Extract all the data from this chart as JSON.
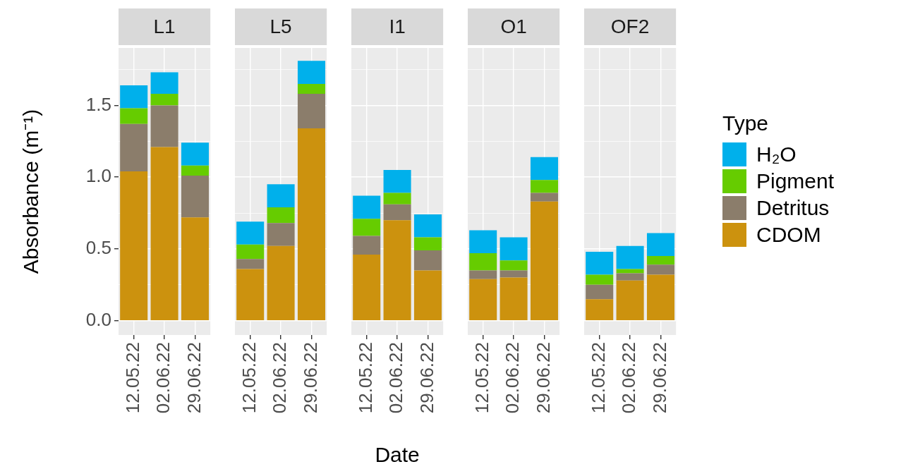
{
  "chart_data": [
    {
      "type": "bar",
      "stacked": true,
      "title": "L1",
      "ylabel": "Absorbance (m⁻¹)",
      "categories": [
        "12.05.22",
        "02.06.22",
        "29.06.22"
      ],
      "series": [
        {
          "color": "#cc920e",
          "values": [
            1.04,
            1.21,
            0.72
          ]
        },
        {
          "color": "#8b7d6b",
          "values": [
            0.33,
            0.29,
            0.29
          ]
        },
        {
          "color": "#66cc00",
          "values": [
            0.11,
            0.08,
            0.07
          ]
        },
        {
          "color": "#00b0eb",
          "values": [
            0.16,
            0.15,
            0.16
          ]
        }
      ],
      "ylim": [
        -0.1,
        1.9
      ],
      "yticks": [
        {
          "value": 0,
          "label": "0.0"
        },
        {
          "value": 0.25,
          "label": null
        },
        {
          "value": 0.5,
          "label": "0.5"
        },
        {
          "value": 0.75,
          "label": null
        },
        {
          "value": 1,
          "label": "1.0"
        },
        {
          "value": 1.25,
          "label": null
        },
        {
          "value": 1.5,
          "label": "1.5"
        },
        {
          "value": 1.75,
          "label": null
        }
      ],
      "grid": true
    },
    {
      "type": "bar",
      "stacked": true,
      "title": "L5",
      "categories": [
        "12.05.22",
        "02.06.22",
        "29.06.22"
      ],
      "series": [
        {
          "color": "#cc920e",
          "values": [
            0.36,
            0.52,
            1.34
          ]
        },
        {
          "color": "#8b7d6b",
          "values": [
            0.07,
            0.16,
            0.24
          ]
        },
        {
          "color": "#66cc00",
          "values": [
            0.1,
            0.11,
            0.07
          ]
        },
        {
          "color": "#00b0eb",
          "values": [
            0.16,
            0.16,
            0.16
          ]
        }
      ],
      "ylim": [
        -0.1,
        1.9
      ],
      "yticks": [
        0,
        {
          "value": 0.25,
          "label": null
        },
        0.5,
        {
          "value": 0.75,
          "label": null
        },
        1,
        {
          "value": 1.25,
          "label": null
        },
        1.5,
        {
          "value": 1.75,
          "label": null
        }
      ],
      "grid": true,
      "tick_labels": "x"
    },
    {
      "type": "bar",
      "stacked": true,
      "title": "I1",
      "xlabel": "Date",
      "categories": [
        "12.05.22",
        "02.06.22",
        "29.06.22"
      ],
      "series": [
        {
          "color": "#cc920e",
          "values": [
            0.46,
            0.7,
            0.35
          ]
        },
        {
          "color": "#8b7d6b",
          "values": [
            0.13,
            0.11,
            0.14
          ]
        },
        {
          "color": "#66cc00",
          "values": [
            0.12,
            0.08,
            0.09
          ]
        },
        {
          "color": "#00b0eb",
          "values": [
            0.16,
            0.16,
            0.16
          ]
        }
      ],
      "ylim": [
        -0.1,
        1.9
      ],
      "yticks": [
        0,
        {
          "value": 0.25,
          "label": null
        },
        0.5,
        {
          "value": 0.75,
          "label": null
        },
        1,
        {
          "value": 1.25,
          "label": null
        },
        1.5,
        {
          "value": 1.75,
          "label": null
        }
      ],
      "grid": true,
      "tick_labels": "x"
    },
    {
      "type": "bar",
      "stacked": true,
      "title": "O1",
      "categories": [
        "12.05.22",
        "02.06.22",
        "29.06.22"
      ],
      "series": [
        {
          "color": "#cc920e",
          "values": [
            0.29,
            0.3,
            0.83
          ]
        },
        {
          "color": "#8b7d6b",
          "values": [
            0.06,
            0.05,
            0.06
          ]
        },
        {
          "color": "#66cc00",
          "values": [
            0.12,
            0.07,
            0.09
          ]
        },
        {
          "color": "#00b0eb",
          "values": [
            0.16,
            0.16,
            0.16
          ]
        }
      ],
      "ylim": [
        -0.1,
        1.9
      ],
      "yticks": [
        0,
        {
          "value": 0.25,
          "label": null
        },
        0.5,
        {
          "value": 0.75,
          "label": null
        },
        1,
        {
          "value": 1.25,
          "label": null
        },
        1.5,
        {
          "value": 1.75,
          "label": null
        }
      ],
      "grid": true,
      "tick_labels": "x"
    },
    {
      "type": "bar",
      "stacked": true,
      "title": "OF2",
      "categories": [
        "12.05.22",
        "02.06.22",
        "29.06.22"
      ],
      "series": [
        {
          "name": "CDOM",
          "color": "#cc920e",
          "values": [
            0.15,
            0.28,
            0.32
          ]
        },
        {
          "name": "Detritus",
          "color": "#8b7d6b",
          "values": [
            0.1,
            0.05,
            0.07
          ]
        },
        {
          "name": "Pigment",
          "color": "#66cc00",
          "values": [
            0.07,
            0.03,
            0.06
          ]
        },
        {
          "name": "H₂O",
          "color": "#00b0eb",
          "values": [
            0.16,
            0.16,
            0.16
          ]
        }
      ],
      "ylim": [
        -0.1,
        1.9
      ],
      "yticks": [
        0,
        {
          "value": 0.25,
          "label": null
        },
        0.5,
        {
          "value": 0.75,
          "label": null
        },
        1,
        {
          "value": 1.25,
          "label": null
        },
        1.5,
        {
          "value": 1.75,
          "label": null
        }
      ],
      "grid": true,
      "tick_labels": "x",
      "legend": "right",
      "legend_title": "Type"
    }
  ]
}
